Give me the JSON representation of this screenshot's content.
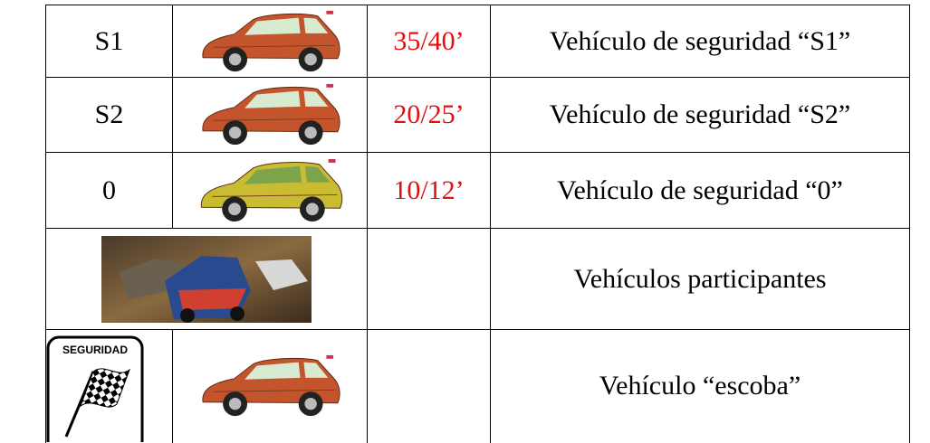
{
  "table": {
    "rows": [
      {
        "code": "S1",
        "time": "35/40’",
        "description": "Vehículo de seguridad “S1”"
      },
      {
        "code": "S2",
        "time": "20/25’",
        "description": "Vehículo de seguridad “S2”"
      },
      {
        "code": "0",
        "time": "10/12’",
        "description": "Vehículo de seguridad “0”"
      },
      {
        "description": "Vehículos participantes"
      },
      {
        "sign": "SEGURIDAD",
        "description": "Vehículo “escoba”"
      }
    ]
  }
}
